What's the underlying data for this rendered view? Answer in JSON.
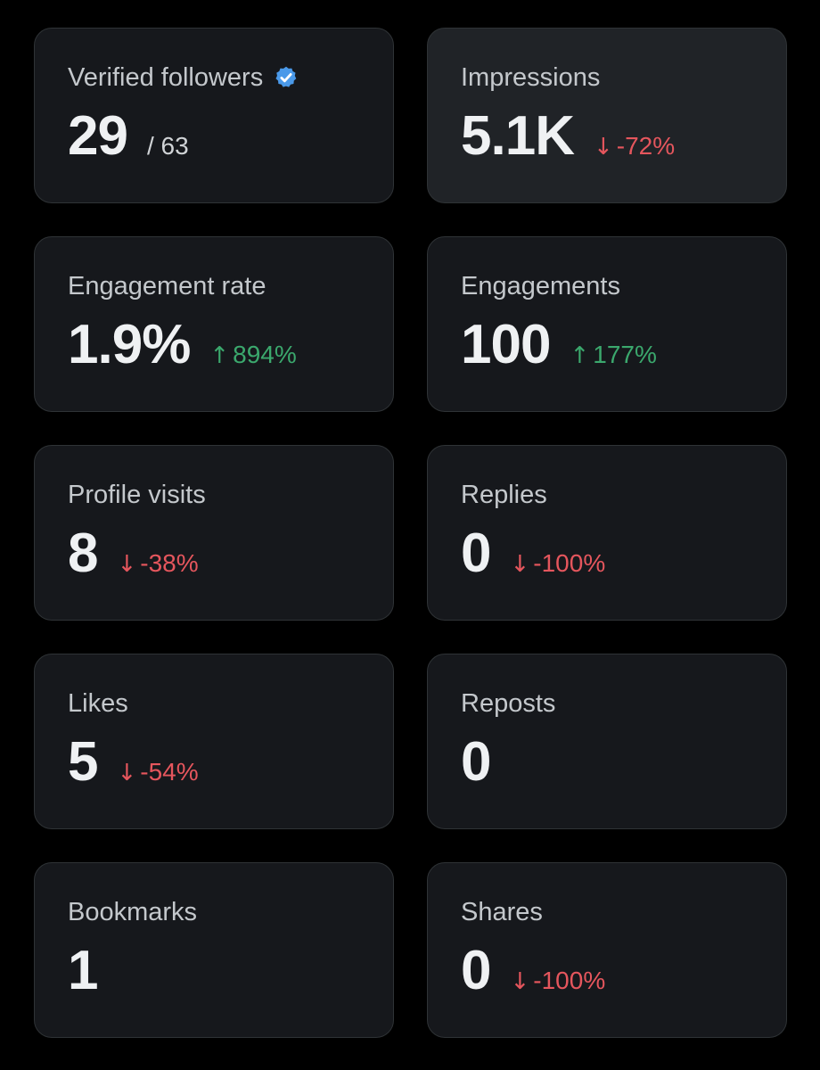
{
  "colors": {
    "page_bg": "#000000",
    "card_bg": "#16181c",
    "card_bg_highlight": "#202327",
    "border": "#2f3336",
    "label": "#c4c8cc",
    "value": "#eff1f3",
    "down": "#e5565d",
    "up": "#3ba86d",
    "verified": "#4a99e9"
  },
  "metrics": {
    "verified_followers": {
      "label": "Verified followers",
      "value": "29",
      "total": "/ 63",
      "icon": "verified-badge-icon"
    },
    "impressions": {
      "label": "Impressions",
      "value": "5.1K",
      "arrow": "↓",
      "change": "-72%",
      "direction": "down"
    },
    "engagement_rate": {
      "label": "Engagement rate",
      "value": "1.9%",
      "arrow": "↑",
      "change": "894%",
      "direction": "up"
    },
    "engagements": {
      "label": "Engagements",
      "value": "100",
      "arrow": "↑",
      "change": "177%",
      "direction": "up"
    },
    "profile_visits": {
      "label": "Profile visits",
      "value": "8",
      "arrow": "↓",
      "change": "-38%",
      "direction": "down"
    },
    "replies": {
      "label": "Replies",
      "value": "0",
      "arrow": "↓",
      "change": "-100%",
      "direction": "down"
    },
    "likes": {
      "label": "Likes",
      "value": "5",
      "arrow": "↓",
      "change": "-54%",
      "direction": "down"
    },
    "reposts": {
      "label": "Reposts",
      "value": "0"
    },
    "bookmarks": {
      "label": "Bookmarks",
      "value": "1"
    },
    "shares": {
      "label": "Shares",
      "value": "0",
      "arrow": "↓",
      "change": "-100%",
      "direction": "down"
    }
  }
}
